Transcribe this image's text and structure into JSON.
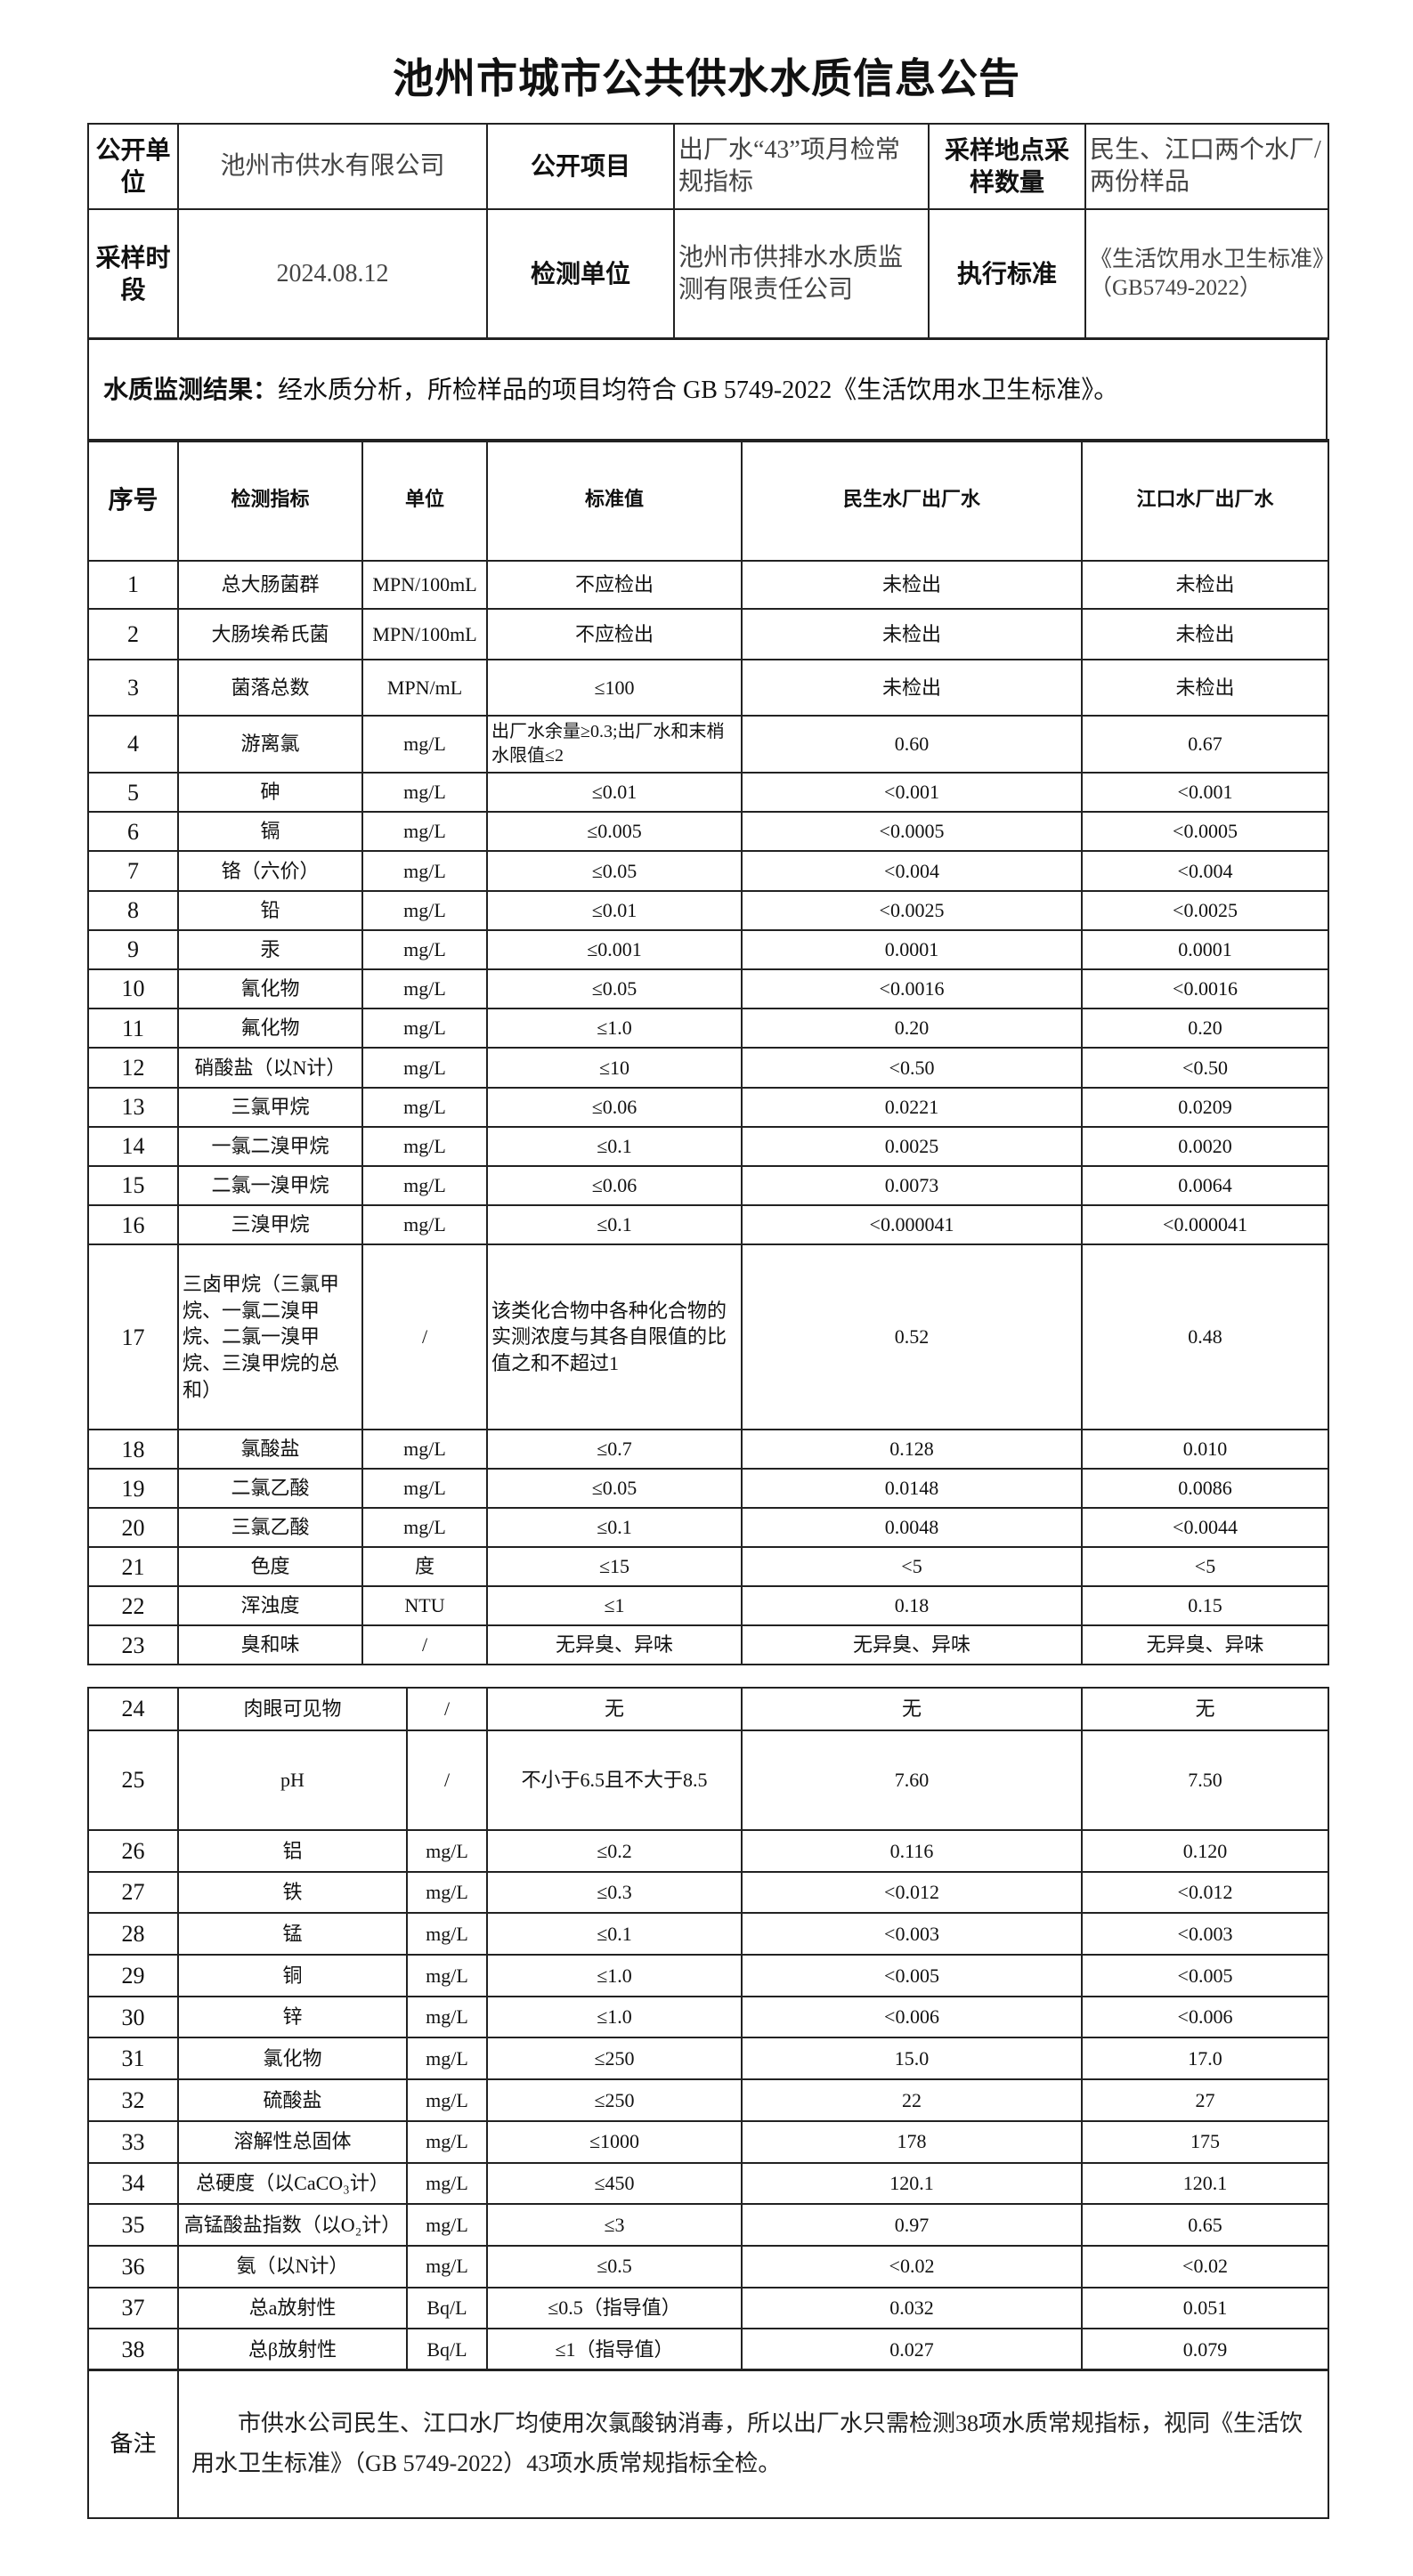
{
  "title": "池州市城市公共供水水质信息公告",
  "header": {
    "disclosure_unit_label": "公开单位",
    "disclosure_unit": "池州市供水有限公司",
    "disclosure_item_label": "公开项目",
    "disclosure_item": "出厂水“43”项月检常规指标",
    "sampling_site_label": "采样地点采样数量",
    "sampling_site": "民生、江口两个水厂/两份样品",
    "sampling_period_label": "采样时段",
    "sampling_period": "2024.08.12",
    "testing_unit_label": "检测单位",
    "testing_unit": "池州市供排水水质监测有限责任公司",
    "standard_label": "执行标准",
    "standard": "《生活饮用水卫生标准》（GB5749-2022）"
  },
  "result": {
    "label": "水质监测结果：",
    "text": "经水质分析，所检样品的项目均符合 GB 5749-2022《生活饮用水卫生标准》。"
  },
  "columns": [
    "序号",
    "检测指标",
    "单位",
    "标准值",
    "民生水厂出厂水",
    "江口水厂出厂水"
  ],
  "rows": [
    [
      "1",
      "总大肠菌群",
      "MPN/100mL",
      "不应检出",
      "未检出",
      "未检出"
    ],
    [
      "2",
      "大肠埃希氏菌",
      "MPN/100mL",
      "不应检出",
      "未检出",
      "未检出"
    ],
    [
      "3",
      "菌落总数",
      "MPN/mL",
      "≤100",
      "未检出",
      "未检出"
    ],
    [
      "4",
      "游离氯",
      "mg/L",
      "出厂水余量≥0.3;出厂水和末梢水限值≤2",
      "0.60",
      "0.67"
    ],
    [
      "5",
      "砷",
      "mg/L",
      "≤0.01",
      "<0.001",
      "<0.001"
    ],
    [
      "6",
      "镉",
      "mg/L",
      "≤0.005",
      "<0.0005",
      "<0.0005"
    ],
    [
      "7",
      "铬（六价）",
      "mg/L",
      "≤0.05",
      "<0.004",
      "<0.004"
    ],
    [
      "8",
      "铅",
      "mg/L",
      "≤0.01",
      "<0.0025",
      "<0.0025"
    ],
    [
      "9",
      "汞",
      "mg/L",
      "≤0.001",
      "0.0001",
      "0.0001"
    ],
    [
      "10",
      "氰化物",
      "mg/L",
      "≤0.05",
      "<0.0016",
      "<0.0016"
    ],
    [
      "11",
      "氟化物",
      "mg/L",
      "≤1.0",
      "0.20",
      "0.20"
    ],
    [
      "12",
      "硝酸盐（以N计）",
      "mg/L",
      "≤10",
      "<0.50",
      "<0.50"
    ],
    [
      "13",
      "三氯甲烷",
      "mg/L",
      "≤0.06",
      "0.0221",
      "0.0209"
    ],
    [
      "14",
      "一氯二溴甲烷",
      "mg/L",
      "≤0.1",
      "0.0025",
      "0.0020"
    ],
    [
      "15",
      "二氯一溴甲烷",
      "mg/L",
      "≤0.06",
      "0.0073",
      "0.0064"
    ],
    [
      "16",
      "三溴甲烷",
      "mg/L",
      "≤0.1",
      "<0.000041",
      "<0.000041"
    ],
    [
      "17",
      "三卤甲烷（三氯甲烷、一氯二溴甲烷、二氯一溴甲烷、三溴甲烷的总和）",
      "/",
      "该类化合物中各种化合物的实测浓度与其各自限值的比值之和不超过1",
      "0.52",
      "0.48"
    ],
    [
      "18",
      "氯酸盐",
      "mg/L",
      "≤0.7",
      "0.128",
      "0.010"
    ],
    [
      "19",
      "二氯乙酸",
      "mg/L",
      "≤0.05",
      "0.0148",
      "0.0086"
    ],
    [
      "20",
      "三氯乙酸",
      "mg/L",
      "≤0.1",
      "0.0048",
      "<0.0044"
    ],
    [
      "21",
      "色度",
      "度",
      "≤15",
      "<5",
      "<5"
    ],
    [
      "22",
      "浑浊度",
      "NTU",
      "≤1",
      "0.18",
      "0.15"
    ],
    [
      "23",
      "臭和味",
      "/",
      "无异臭、异味",
      "无异臭、异味",
      "无异臭、异味"
    ]
  ],
  "rows_page2": [
    [
      "24",
      "肉眼可见物",
      "/",
      "无",
      "无",
      "无"
    ],
    [
      "25",
      "pH",
      "/",
      "不小于6.5且不大于8.5",
      "7.60",
      "7.50"
    ],
    [
      "26",
      "铝",
      "mg/L",
      "≤0.2",
      "0.116",
      "0.120"
    ],
    [
      "27",
      "铁",
      "mg/L",
      "≤0.3",
      "<0.012",
      "<0.012"
    ],
    [
      "28",
      "锰",
      "mg/L",
      "≤0.1",
      "<0.003",
      "<0.003"
    ],
    [
      "29",
      "铜",
      "mg/L",
      "≤1.0",
      "<0.005",
      "<0.005"
    ],
    [
      "30",
      "锌",
      "mg/L",
      "≤1.0",
      "<0.006",
      "<0.006"
    ],
    [
      "31",
      "氯化物",
      "mg/L",
      "≤250",
      "15.0",
      "17.0"
    ],
    [
      "32",
      "硫酸盐",
      "mg/L",
      "≤250",
      "22",
      "27"
    ],
    [
      "33",
      "溶解性总固体",
      "mg/L",
      "≤1000",
      "178",
      "175"
    ],
    [
      "34",
      "总硬度（以CaCO₃计）",
      "mg/L",
      "≤450",
      "120.1",
      "120.1"
    ],
    [
      "35",
      "高锰酸盐指数（以O₂计）",
      "mg/L",
      "≤3",
      "0.97",
      "0.65"
    ],
    [
      "36",
      "氨（以N计）",
      "mg/L",
      "≤0.5",
      "<0.02",
      "<0.02"
    ],
    [
      "37",
      "总a放射性",
      "Bq/L",
      "≤0.5（指导值）",
      "0.032",
      "0.051"
    ],
    [
      "38",
      "总β放射性",
      "Bq/L",
      "≤1（指导值）",
      "0.027",
      "0.079"
    ]
  ],
  "note": {
    "label": "备注",
    "text": "市供水公司民生、江口水厂均使用次氯酸钠消毒，所以出厂水只需检测38项水质常规指标，视同《生活饮用水卫生标准》（GB 5749-2022）43项水质常规指标全检。"
  }
}
